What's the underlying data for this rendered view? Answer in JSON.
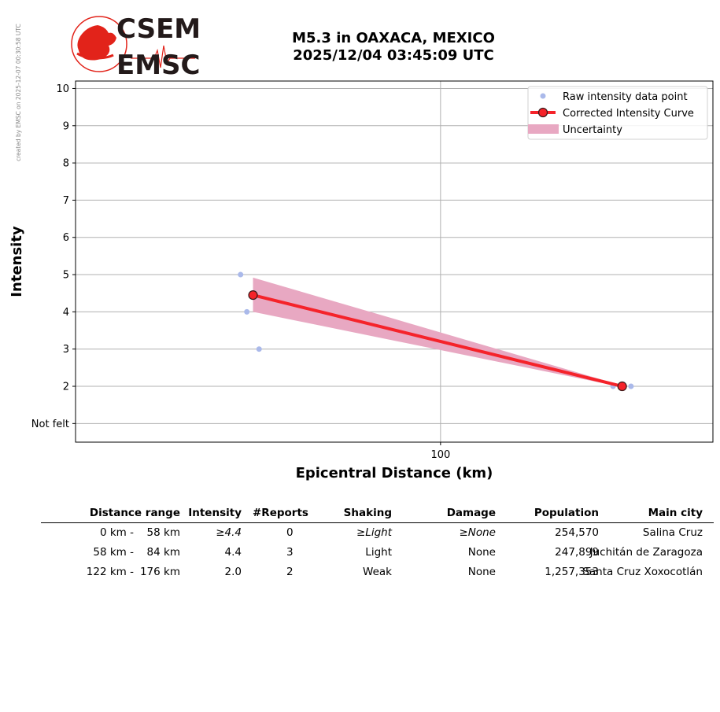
{
  "credit": "created by EMSC on 2025-12-07 00:30:58 UTC",
  "logo": {
    "line1": "CSEM",
    "line2": "EMSC",
    "accent": "#e2231a",
    "text_color": "#231a1a"
  },
  "title": {
    "line1": "M5.3 in OAXACA, MEXICO",
    "line2": "2025/12/04 03:45:09 UTC"
  },
  "chart_data": {
    "type": "scatter",
    "xlabel": "Epicentral Distance (km)",
    "ylabel": "Intensity",
    "x_scale": "log",
    "xlim": [
      37,
      210
    ],
    "ylim": [
      0.5,
      10.2
    ],
    "x_ticks": [
      {
        "value": 100,
        "label": "100"
      }
    ],
    "y_ticks": [
      {
        "value": 1,
        "label": "Not felt"
      },
      {
        "value": 2,
        "label": "2"
      },
      {
        "value": 3,
        "label": "3"
      },
      {
        "value": 4,
        "label": "4"
      },
      {
        "value": 5,
        "label": "5"
      },
      {
        "value": 6,
        "label": "6"
      },
      {
        "value": 7,
        "label": "7"
      },
      {
        "value": 8,
        "label": "8"
      },
      {
        "value": 9,
        "label": "9"
      },
      {
        "value": 10,
        "label": "10"
      }
    ],
    "grid": true,
    "legend_position": "top-right",
    "legend": [
      "Raw intensity data point",
      "Corrected Intensity Curve",
      "Uncertainty"
    ],
    "raw_points": [
      {
        "x": 58,
        "y": 5
      },
      {
        "x": 59,
        "y": 4
      },
      {
        "x": 61,
        "y": 3
      },
      {
        "x": 160,
        "y": 2
      },
      {
        "x": 168,
        "y": 2
      }
    ],
    "curve": [
      {
        "x": 60,
        "y": 4.45
      },
      {
        "x": 164,
        "y": 2.0
      }
    ],
    "uncertainty": [
      {
        "x": 60,
        "lo": 4.0,
        "hi": 4.92
      },
      {
        "x": 164,
        "lo": 1.98,
        "hi": 2.02
      }
    ],
    "colors": {
      "raw": "#aab9ea",
      "curve": "#f5232a",
      "marker_edge": "#3a1a1a",
      "band": "#e8a8c2",
      "grid": "#b0b0b0"
    }
  },
  "table": {
    "headers": [
      "Distance range",
      "Intensity",
      "#Reports",
      "Shaking",
      "Damage",
      "Population",
      "Main city"
    ],
    "rows": [
      {
        "d_from": "0 km -",
        "d_to": "58 km",
        "intensity": "≥4.4",
        "reports": "0",
        "shaking": "≥Light",
        "damage": "≥None",
        "population": "254,570",
        "city": "Salina Cruz",
        "italic": true
      },
      {
        "d_from": "58 km -",
        "d_to": "84 km",
        "intensity": "4.4",
        "reports": "3",
        "shaking": "Light",
        "damage": "None",
        "population": "247,899",
        "city": "Juchitán de Zaragoza",
        "italic": false
      },
      {
        "d_from": "122 km -",
        "d_to": "176 km",
        "intensity": "2.0",
        "reports": "2",
        "shaking": "Weak",
        "damage": "None",
        "population": "1,257,353",
        "city": "Santa Cruz Xoxocotlán",
        "italic": false
      }
    ]
  }
}
